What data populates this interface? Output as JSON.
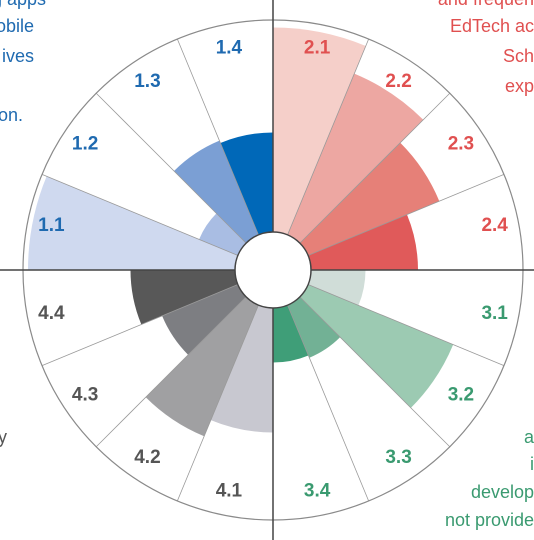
{
  "chart_data": {
    "type": "polar_bar",
    "categories": [
      "2.1",
      "2.2",
      "2.3",
      "2.4",
      "3.1",
      "3.2",
      "3.3",
      "3.4",
      "4.1",
      "4.2",
      "4.3",
      "4.4",
      "1.1",
      "1.2",
      "1.3",
      "1.4"
    ],
    "values": [
      97,
      85,
      72,
      58,
      37,
      78,
      38,
      37,
      65,
      72,
      48,
      57,
      98,
      32,
      56,
      55
    ],
    "colors": [
      "#f5cfc9",
      "#eda7a2",
      "#e68078",
      "#e05a5a",
      "#d0ddd8",
      "#9ccab2",
      "#72b195",
      "#3f9e78",
      "#c8c8d0",
      "#a0a0a2",
      "#7d7e82",
      "#585858",
      "#cfd9ef",
      "#a9bde3",
      "#7b9fd4",
      "#0068b8"
    ],
    "label_colors": [
      "#e05050",
      "#e05050",
      "#e05050",
      "#e05050",
      "#3a9a70",
      "#3a9a70",
      "#3a9a70",
      "#3a9a70",
      "#555555",
      "#555555",
      "#555555",
      "#555555",
      "#1f6ab0",
      "#1f6ab0",
      "#1f6ab0",
      "#1f6ab0"
    ],
    "rlim": [
      0,
      100
    ],
    "annotations": [
      {
        "text": "g apps",
        "color": "#1f6ab0"
      },
      {
        "text": "obile",
        "color": "#1f6ab0"
      },
      {
        "text": "ives",
        "color": "#1f6ab0"
      },
      {
        "text": "on.",
        "color": "#1f6ab0"
      },
      {
        "text": "and frequen",
        "color": "#e05050"
      },
      {
        "text": "EdTech ac",
        "color": "#e05050"
      },
      {
        "text": "Sch",
        "color": "#e05050"
      },
      {
        "text": "exp",
        "color": "#e05050"
      },
      {
        "text": "a",
        "color": "#3a9a70"
      },
      {
        "text": "i",
        "color": "#3a9a70"
      },
      {
        "text": "develop",
        "color": "#3a9a70"
      },
      {
        "text": "not provide",
        "color": "#3a9a70"
      },
      {
        "text": "y",
        "color": "#555555"
      }
    ]
  }
}
